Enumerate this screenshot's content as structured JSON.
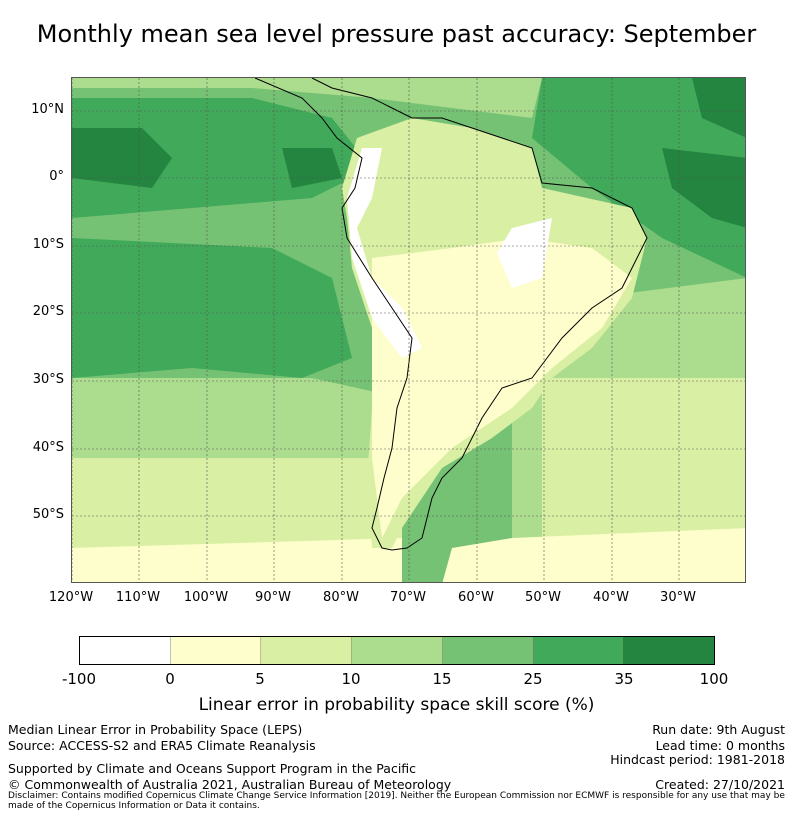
{
  "title": "Monthly mean sea level pressure past accuracy: September",
  "map": {
    "lat_labels": [
      "10°N",
      "0°",
      "10°S",
      "20°S",
      "30°S",
      "40°S",
      "50°S"
    ],
    "lon_labels": [
      "120°W",
      "110°W",
      "100°W",
      "90°W",
      "80°W",
      "70°W",
      "60°W",
      "50°W",
      "40°W",
      "30°W"
    ],
    "region": "South America and surrounding oceans",
    "lat_range": [
      -60,
      15
    ],
    "lon_range": [
      -120,
      -20
    ]
  },
  "colorbar": {
    "ticks": [
      "-100",
      "0",
      "5",
      "10",
      "15",
      "25",
      "35",
      "100"
    ],
    "colors": [
      "#ffffff",
      "#fefecc",
      "#d9efa3",
      "#acdc8e",
      "#76c274",
      "#41a95a",
      "#23853f"
    ],
    "label": "Linear error in probability space skill score (%)"
  },
  "footer": {
    "left_line1": "Median Linear Error in Probability Space (LEPS)",
    "left_line2": "Source: ACCESS-S2 and ERA5 Climate Reanalysis",
    "supported": "Supported by Climate and Oceans Support Program in the Pacific",
    "copyright": "© Commonwealth of Australia 2021, Australian Bureau of Meteorology",
    "run_date": "Run date: 9th August",
    "lead_time": "Lead time: 0 months",
    "hindcast": "Hindcast period: 1981-2018",
    "created": "Created: 27/10/2021",
    "disclaimer": "Disclaimer: Contains modified Copernicus Climate Change Service Information [2019]. Neither the European Commission nor ECMWF is responsible for any use that may be made of the Copernicus Information or Data it contains."
  }
}
